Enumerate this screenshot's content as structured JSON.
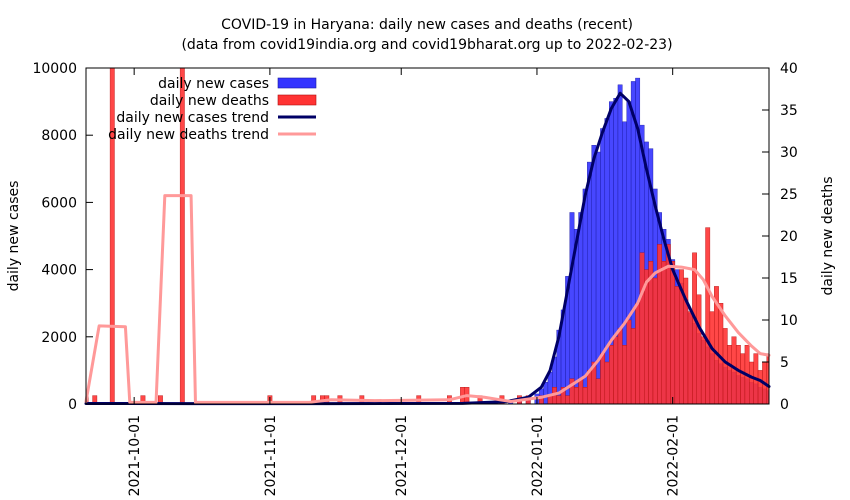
{
  "chart_data": {
    "type": "bar",
    "title": "COVID-19 in Haryana: daily new cases and deaths (recent)",
    "subtitle": "(data from covid19india.org and covid19bharat.org up to 2022-02-23)",
    "ylabel": "daily new cases",
    "y2label": "daily new deaths",
    "xlim": [
      "2021-09-20",
      "2022-02-23"
    ],
    "ylim": [
      0,
      10000
    ],
    "y2lim": [
      0,
      40
    ],
    "yticks": [
      0,
      2000,
      4000,
      6000,
      8000,
      10000
    ],
    "y2ticks": [
      0,
      5,
      10,
      15,
      20,
      25,
      30,
      35,
      40
    ],
    "xticks": [
      "2021-10-01",
      "2021-11-01",
      "2021-12-01",
      "2022-01-01",
      "2022-02-01"
    ],
    "grid": false,
    "legend_position": "top-left",
    "series": [
      {
        "name": "daily new cases",
        "axis": "left",
        "kind": "bar",
        "color": "#3333ff",
        "points": [
          [
            "2021-09-20",
            15
          ],
          [
            "2021-09-25",
            20
          ],
          [
            "2021-10-01",
            15
          ],
          [
            "2021-10-10",
            10
          ],
          [
            "2021-10-20",
            12
          ],
          [
            "2021-11-01",
            10
          ],
          [
            "2021-11-15",
            12
          ],
          [
            "2021-12-01",
            15
          ],
          [
            "2021-12-15",
            20
          ],
          [
            "2021-12-20",
            30
          ],
          [
            "2021-12-24",
            45
          ],
          [
            "2021-12-26",
            60
          ],
          [
            "2021-12-28",
            110
          ],
          [
            "2021-12-30",
            180
          ],
          [
            "2022-01-01",
            300
          ],
          [
            "2022-01-02",
            450
          ],
          [
            "2022-01-03",
            650
          ],
          [
            "2022-01-04",
            950
          ],
          [
            "2022-01-05",
            1400
          ],
          [
            "2022-01-06",
            2200
          ],
          [
            "2022-01-07",
            2800
          ],
          [
            "2022-01-08",
            3800
          ],
          [
            "2022-01-09",
            5700
          ],
          [
            "2022-01-10",
            5200
          ],
          [
            "2022-01-11",
            5700
          ],
          [
            "2022-01-12",
            6400
          ],
          [
            "2022-01-13",
            7200
          ],
          [
            "2022-01-14",
            7700
          ],
          [
            "2022-01-15",
            7500
          ],
          [
            "2022-01-16",
            8200
          ],
          [
            "2022-01-17",
            8500
          ],
          [
            "2022-01-18",
            9000
          ],
          [
            "2022-01-19",
            9100
          ],
          [
            "2022-01-20",
            9500
          ],
          [
            "2022-01-21",
            8400
          ],
          [
            "2022-01-22",
            9000
          ],
          [
            "2022-01-23",
            9600
          ],
          [
            "2022-01-24",
            9700
          ],
          [
            "2022-01-25",
            8300
          ],
          [
            "2022-01-26",
            7800
          ],
          [
            "2022-01-27",
            7600
          ],
          [
            "2022-01-28",
            6400
          ],
          [
            "2022-01-29",
            5700
          ],
          [
            "2022-01-30",
            5200
          ],
          [
            "2022-01-31",
            4900
          ],
          [
            "2022-02-01",
            4300
          ],
          [
            "2022-02-02",
            4000
          ],
          [
            "2022-02-03",
            3600
          ],
          [
            "2022-02-04",
            3100
          ],
          [
            "2022-02-05",
            2700
          ],
          [
            "2022-02-06",
            2400
          ],
          [
            "2022-02-07",
            2100
          ],
          [
            "2022-02-08",
            1900
          ],
          [
            "2022-02-09",
            1700
          ],
          [
            "2022-02-10",
            1500
          ],
          [
            "2022-02-11",
            1300
          ],
          [
            "2022-02-12",
            1200
          ],
          [
            "2022-02-13",
            1100
          ],
          [
            "2022-02-14",
            1000
          ],
          [
            "2022-02-15",
            950
          ],
          [
            "2022-02-16",
            850
          ],
          [
            "2022-02-17",
            800
          ],
          [
            "2022-02-18",
            750
          ],
          [
            "2022-02-19",
            650
          ],
          [
            "2022-02-20",
            600
          ],
          [
            "2022-02-21",
            500
          ],
          [
            "2022-02-22",
            450
          ],
          [
            "2022-02-23",
            400
          ]
        ]
      },
      {
        "name": "daily new deaths",
        "axis": "right",
        "kind": "bar",
        "color": "#ff3333",
        "points": [
          [
            "2021-09-20",
            1
          ],
          [
            "2021-09-22",
            1
          ],
          [
            "2021-09-26",
            40
          ],
          [
            "2021-10-03",
            1
          ],
          [
            "2021-10-07",
            1
          ],
          [
            "2021-10-12",
            40
          ],
          [
            "2021-11-01",
            1
          ],
          [
            "2021-11-11",
            1
          ],
          [
            "2021-11-13",
            1
          ],
          [
            "2021-11-14",
            1
          ],
          [
            "2021-11-17",
            1
          ],
          [
            "2021-11-22",
            1
          ],
          [
            "2021-12-05",
            1
          ],
          [
            "2021-12-12",
            1
          ],
          [
            "2021-12-15",
            2
          ],
          [
            "2021-12-16",
            2
          ],
          [
            "2021-12-19",
            1
          ],
          [
            "2021-12-24",
            1
          ],
          [
            "2021-12-28",
            1
          ],
          [
            "2021-12-30",
            1
          ],
          [
            "2022-01-02",
            1
          ],
          [
            "2022-01-04",
            1
          ],
          [
            "2022-01-05",
            2
          ],
          [
            "2022-01-06",
            1
          ],
          [
            "2022-01-07",
            2
          ],
          [
            "2022-01-08",
            1
          ],
          [
            "2022-01-09",
            3
          ],
          [
            "2022-01-10",
            2
          ],
          [
            "2022-01-11",
            3
          ],
          [
            "2022-01-12",
            2
          ],
          [
            "2022-01-13",
            4
          ],
          [
            "2022-01-14",
            5
          ],
          [
            "2022-01-15",
            3
          ],
          [
            "2022-01-16",
            6
          ],
          [
            "2022-01-17",
            5
          ],
          [
            "2022-01-18",
            7
          ],
          [
            "2022-01-19",
            8
          ],
          [
            "2022-01-20",
            9
          ],
          [
            "2022-01-21",
            7
          ],
          [
            "2022-01-22",
            10
          ],
          [
            "2022-01-23",
            9
          ],
          [
            "2022-01-24",
            12
          ],
          [
            "2022-01-25",
            18
          ],
          [
            "2022-01-26",
            16
          ],
          [
            "2022-01-27",
            17
          ],
          [
            "2022-01-28",
            15
          ],
          [
            "2022-01-29",
            19
          ],
          [
            "2022-01-30",
            17
          ],
          [
            "2022-01-31",
            19
          ],
          [
            "2022-02-01",
            17
          ],
          [
            "2022-02-02",
            14
          ],
          [
            "2022-02-03",
            16
          ],
          [
            "2022-02-04",
            15
          ],
          [
            "2022-02-05",
            11
          ],
          [
            "2022-02-06",
            18
          ],
          [
            "2022-02-07",
            13
          ],
          [
            "2022-02-08",
            8
          ],
          [
            "2022-02-09",
            21
          ],
          [
            "2022-02-10",
            11
          ],
          [
            "2022-02-11",
            14
          ],
          [
            "2022-02-12",
            12
          ],
          [
            "2022-02-13",
            9
          ],
          [
            "2022-02-14",
            7
          ],
          [
            "2022-02-15",
            8
          ],
          [
            "2022-02-16",
            7
          ],
          [
            "2022-02-17",
            6
          ],
          [
            "2022-02-18",
            7
          ],
          [
            "2022-02-19",
            5
          ],
          [
            "2022-02-20",
            6
          ],
          [
            "2022-02-21",
            4
          ],
          [
            "2022-02-22",
            5
          ],
          [
            "2022-02-23",
            6
          ]
        ]
      },
      {
        "name": "daily new cases trend",
        "axis": "left",
        "kind": "line",
        "color": "#000066",
        "points": [
          [
            "2021-09-20",
            15
          ],
          [
            "2021-10-15",
            12
          ],
          [
            "2021-11-15",
            12
          ],
          [
            "2021-12-15",
            18
          ],
          [
            "2021-12-25",
            70
          ],
          [
            "2021-12-30",
            200
          ],
          [
            "2022-01-02",
            500
          ],
          [
            "2022-01-04",
            1000
          ],
          [
            "2022-01-06",
            2000
          ],
          [
            "2022-01-08",
            3400
          ],
          [
            "2022-01-10",
            4800
          ],
          [
            "2022-01-12",
            6200
          ],
          [
            "2022-01-14",
            7300
          ],
          [
            "2022-01-16",
            8100
          ],
          [
            "2022-01-18",
            8800
          ],
          [
            "2022-01-20",
            9250
          ],
          [
            "2022-01-22",
            9000
          ],
          [
            "2022-01-24",
            8200
          ],
          [
            "2022-01-26",
            7000
          ],
          [
            "2022-01-28",
            5900
          ],
          [
            "2022-01-30",
            4900
          ],
          [
            "2022-02-01",
            4000
          ],
          [
            "2022-02-04",
            3100
          ],
          [
            "2022-02-07",
            2300
          ],
          [
            "2022-02-10",
            1650
          ],
          [
            "2022-02-13",
            1250
          ],
          [
            "2022-02-16",
            1000
          ],
          [
            "2022-02-19",
            800
          ],
          [
            "2022-02-21",
            700
          ],
          [
            "2022-02-23",
            520
          ]
        ]
      },
      {
        "name": "daily new deaths trend",
        "axis": "right",
        "kind": "line",
        "color": "#ff9999",
        "points": [
          [
            "2021-09-20",
            0.3
          ],
          [
            "2021-09-23",
            9.3
          ],
          [
            "2021-09-29",
            9.2
          ],
          [
            "2021-09-30",
            0.2
          ],
          [
            "2021-10-06",
            0.2
          ],
          [
            "2021-10-08",
            24.8
          ],
          [
            "2021-10-14",
            24.8
          ],
          [
            "2021-10-15",
            0.2
          ],
          [
            "2021-11-10",
            0.2
          ],
          [
            "2021-11-15",
            0.5
          ],
          [
            "2021-11-25",
            0.4
          ],
          [
            "2021-12-12",
            0.5
          ],
          [
            "2021-12-16",
            1.0
          ],
          [
            "2021-12-20",
            0.8
          ],
          [
            "2021-12-26",
            0.3
          ],
          [
            "2022-01-02",
            0.8
          ],
          [
            "2022-01-06",
            1.3
          ],
          [
            "2022-01-09",
            2.3
          ],
          [
            "2022-01-12",
            3.3
          ],
          [
            "2022-01-15",
            5.2
          ],
          [
            "2022-01-18",
            7.6
          ],
          [
            "2022-01-21",
            9.6
          ],
          [
            "2022-01-24",
            12.0
          ],
          [
            "2022-01-26",
            14.5
          ],
          [
            "2022-01-28",
            15.6
          ],
          [
            "2022-01-31",
            16.4
          ],
          [
            "2022-02-03",
            16.3
          ],
          [
            "2022-02-06",
            16.0
          ],
          [
            "2022-02-08",
            14.8
          ],
          [
            "2022-02-10",
            12.8
          ],
          [
            "2022-02-13",
            10.5
          ],
          [
            "2022-02-16",
            8.5
          ],
          [
            "2022-02-19",
            6.9
          ],
          [
            "2022-02-21",
            6.0
          ],
          [
            "2022-02-23",
            5.8
          ]
        ]
      }
    ]
  }
}
